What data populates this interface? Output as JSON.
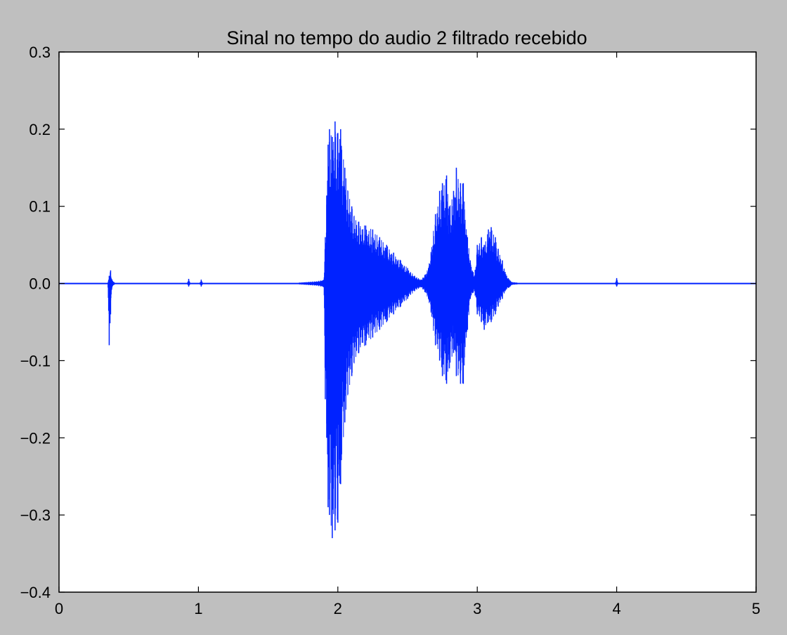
{
  "chart_data": {
    "type": "line",
    "title": "Sinal no tempo do audio 2 filtrado recebido",
    "xlabel": "",
    "ylabel": "",
    "xlim": [
      0,
      5
    ],
    "ylim": [
      -0.4,
      0.3
    ],
    "xticks": [
      0,
      1,
      2,
      3,
      4,
      5
    ],
    "xtick_labels": [
      "0",
      "1",
      "2",
      "3",
      "4",
      "5"
    ],
    "yticks": [
      -0.4,
      -0.3,
      -0.2,
      -0.1,
      0.0,
      0.1,
      0.2,
      0.3
    ],
    "ytick_labels": [
      "−0.4",
      "−0.3",
      "−0.2",
      "−0.1",
      "0.0",
      "0.1",
      "0.2",
      "0.3"
    ],
    "grid": false,
    "legend": "none",
    "series": [
      {
        "color": "#0022ff",
        "envelope": {
          "x": [
            0.0,
            0.35,
            0.36,
            0.37,
            0.38,
            0.4,
            0.92,
            0.93,
            0.94,
            1.01,
            1.02,
            1.03,
            1.7,
            1.85,
            1.9,
            1.91,
            1.92,
            1.93,
            1.94,
            1.96,
            1.98,
            2.0,
            2.02,
            2.05,
            2.1,
            2.15,
            2.2,
            2.25,
            2.3,
            2.35,
            2.4,
            2.45,
            2.5,
            2.55,
            2.6,
            2.65,
            2.7,
            2.73,
            2.75,
            2.78,
            2.8,
            2.83,
            2.85,
            2.88,
            2.9,
            2.93,
            2.95,
            2.98,
            3.0,
            3.03,
            3.05,
            3.08,
            3.1,
            3.13,
            3.15,
            3.18,
            3.2,
            3.23,
            3.25,
            3.3,
            3.99,
            4.0,
            4.01,
            5.0
          ],
          "upper": [
            0.001,
            0.001,
            0.01,
            0.017,
            0.005,
            0.001,
            0.001,
            0.006,
            0.001,
            0.001,
            0.005,
            0.001,
            0.001,
            0.003,
            0.005,
            0.06,
            0.114,
            0.18,
            0.2,
            0.19,
            0.21,
            0.195,
            0.2,
            0.15,
            0.1,
            0.08,
            0.075,
            0.07,
            0.06,
            0.05,
            0.04,
            0.03,
            0.02,
            0.01,
            0.005,
            0.02,
            0.09,
            0.12,
            0.13,
            0.14,
            0.1,
            0.12,
            0.15,
            0.13,
            0.13,
            0.06,
            0.03,
            0.01,
            0.05,
            0.06,
            0.05,
            0.07,
            0.073,
            0.06,
            0.045,
            0.03,
            0.015,
            0.005,
            0.002,
            0.001,
            0.001,
            0.007,
            0.001,
            0.001
          ],
          "lower": [
            -0.001,
            -0.001,
            -0.08,
            -0.04,
            -0.005,
            -0.001,
            -0.001,
            -0.004,
            -0.001,
            -0.001,
            -0.004,
            -0.001,
            -0.001,
            -0.003,
            -0.005,
            -0.15,
            -0.2,
            -0.29,
            -0.3,
            -0.33,
            -0.32,
            -0.31,
            -0.26,
            -0.18,
            -0.12,
            -0.09,
            -0.08,
            -0.07,
            -0.06,
            -0.05,
            -0.04,
            -0.03,
            -0.02,
            -0.01,
            -0.005,
            -0.02,
            -0.08,
            -0.1,
            -0.12,
            -0.13,
            -0.11,
            -0.09,
            -0.12,
            -0.13,
            -0.13,
            -0.06,
            -0.02,
            -0.01,
            -0.04,
            -0.05,
            -0.06,
            -0.05,
            -0.05,
            -0.04,
            -0.03,
            -0.02,
            -0.01,
            -0.005,
            -0.002,
            -0.001,
            -0.001,
            -0.004,
            -0.001,
            -0.001
          ]
        }
      }
    ]
  }
}
